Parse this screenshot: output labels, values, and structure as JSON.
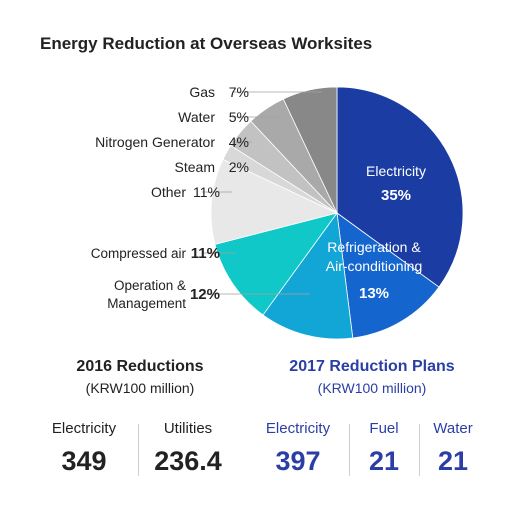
{
  "chart_data": {
    "type": "pie",
    "title": "Energy Reduction at Overseas Worksites",
    "slices": [
      {
        "label": "Electricity",
        "pct": "35%",
        "value": 35,
        "color": "#1b3da3",
        "label_inside": true
      },
      {
        "label": "Refrigeration & Air-conditioning",
        "pct": "13%",
        "value": 13,
        "color": "#1565cf",
        "label_inside": true
      },
      {
        "label": "Operation & Management",
        "pct": "12%",
        "value": 12,
        "color": "#12a6d6"
      },
      {
        "label": "Compressed air",
        "pct": "11%",
        "value": 11,
        "color": "#10c8c8"
      },
      {
        "label": "Other",
        "pct": "11%",
        "value": 11,
        "color": "#e8e8e8"
      },
      {
        "label": "Steam",
        "pct": "2%",
        "value": 2,
        "color": "#d8d8d8"
      },
      {
        "label": "Nitrogen Generator",
        "pct": "4%",
        "value": 4,
        "color": "#c2c2c2"
      },
      {
        "label": "Water",
        "pct": "5%",
        "value": 5,
        "color": "#a9a9a9"
      },
      {
        "label": "Gas",
        "pct": "7%",
        "value": 7,
        "color": "#888888"
      }
    ]
  },
  "summary_2016": {
    "title": "2016 Reductions",
    "unit": "(KRW100 million)",
    "items": [
      {
        "label": "Electricity",
        "value": "349"
      },
      {
        "label": "Utilities",
        "value": "236.4"
      }
    ]
  },
  "summary_2017": {
    "title": "2017 Reduction Plans",
    "unit": "(KRW100 million)",
    "items": [
      {
        "label": "Electricity",
        "value": "397"
      },
      {
        "label": "Fuel",
        "value": "21"
      },
      {
        "label": "Water",
        "value": "21"
      }
    ]
  },
  "colors": {
    "accent_blue": "#2b3ea6",
    "text_dark": "#222222",
    "leader_line": "#a0a0a0"
  }
}
